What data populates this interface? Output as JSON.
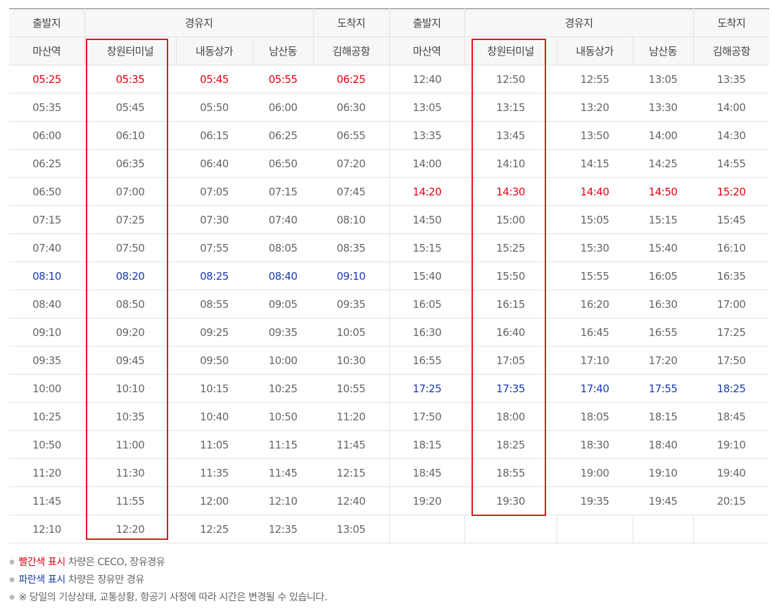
{
  "header": {
    "groups": [
      "출발지",
      "경유지",
      "도착지",
      "출발지",
      "경유지",
      "도착지"
    ],
    "stops": [
      "마산역",
      "창원터미널",
      "내동상가",
      "남산동",
      "김해공항",
      "마산역",
      "창원터미널",
      "내동상가",
      "남산동",
      "김해공항"
    ]
  },
  "left_rows": [
    {
      "t": [
        "05:25",
        "05:35",
        "05:45",
        "05:55",
        "06:25"
      ],
      "c": "red"
    },
    {
      "t": [
        "05:35",
        "05:45",
        "05:50",
        "06:00",
        "06:30"
      ],
      "c": ""
    },
    {
      "t": [
        "06:00",
        "06:10",
        "06:15",
        "06:25",
        "06:55"
      ],
      "c": ""
    },
    {
      "t": [
        "06:25",
        "06:35",
        "06:40",
        "06:50",
        "07:20"
      ],
      "c": ""
    },
    {
      "t": [
        "06:50",
        "07:00",
        "07:05",
        "07:15",
        "07:45"
      ],
      "c": ""
    },
    {
      "t": [
        "07:15",
        "07:25",
        "07:30",
        "07:40",
        "08:10"
      ],
      "c": ""
    },
    {
      "t": [
        "07:40",
        "07:50",
        "07:55",
        "08:05",
        "08:35"
      ],
      "c": ""
    },
    {
      "t": [
        "08:10",
        "08:20",
        "08:25",
        "08:40",
        "09:10"
      ],
      "c": "blue"
    },
    {
      "t": [
        "08:40",
        "08:50",
        "08:55",
        "09:05",
        "09:35"
      ],
      "c": ""
    },
    {
      "t": [
        "09:10",
        "09:20",
        "09:25",
        "09:35",
        "10:05"
      ],
      "c": ""
    },
    {
      "t": [
        "09:35",
        "09:45",
        "09:50",
        "10:00",
        "10:30"
      ],
      "c": ""
    },
    {
      "t": [
        "10:00",
        "10:10",
        "10:15",
        "10:25",
        "10:55"
      ],
      "c": ""
    },
    {
      "t": [
        "10:25",
        "10:35",
        "10:40",
        "10:50",
        "11:20"
      ],
      "c": ""
    },
    {
      "t": [
        "10:50",
        "11:00",
        "11:05",
        "11:15",
        "11:45"
      ],
      "c": ""
    },
    {
      "t": [
        "11:20",
        "11:30",
        "11:35",
        "11:45",
        "12:15"
      ],
      "c": ""
    },
    {
      "t": [
        "11:45",
        "11:55",
        "12:00",
        "12:10",
        "12:40"
      ],
      "c": ""
    },
    {
      "t": [
        "12:10",
        "12:20",
        "12:25",
        "12:35",
        "13:05"
      ],
      "c": ""
    }
  ],
  "right_rows": [
    {
      "t": [
        "12:40",
        "12:50",
        "12:55",
        "13:05",
        "13:35"
      ],
      "c": ""
    },
    {
      "t": [
        "13:05",
        "13:15",
        "13:20",
        "13:30",
        "14:00"
      ],
      "c": ""
    },
    {
      "t": [
        "13:35",
        "13:45",
        "13:50",
        "14:00",
        "14:30"
      ],
      "c": ""
    },
    {
      "t": [
        "14:00",
        "14:10",
        "14:15",
        "14:25",
        "14:55"
      ],
      "c": ""
    },
    {
      "t": [
        "14:20",
        "14:30",
        "14:40",
        "14:50",
        "15:20"
      ],
      "c": "red"
    },
    {
      "t": [
        "14:50",
        "15:00",
        "15:05",
        "15:15",
        "15:45"
      ],
      "c": ""
    },
    {
      "t": [
        "15:15",
        "15:25",
        "15:30",
        "15:40",
        "16:10"
      ],
      "c": ""
    },
    {
      "t": [
        "15:40",
        "15:50",
        "15:55",
        "16:05",
        "16:35"
      ],
      "c": ""
    },
    {
      "t": [
        "16:05",
        "16:15",
        "16:20",
        "16:30",
        "17:00"
      ],
      "c": ""
    },
    {
      "t": [
        "16:30",
        "16:40",
        "16:45",
        "16:55",
        "17:25"
      ],
      "c": ""
    },
    {
      "t": [
        "16:55",
        "17:05",
        "17:10",
        "17:20",
        "17:50"
      ],
      "c": ""
    },
    {
      "t": [
        "17:25",
        "17:35",
        "17:40",
        "17:55",
        "18:25"
      ],
      "c": "blue"
    },
    {
      "t": [
        "17:50",
        "18:00",
        "18:05",
        "18:15",
        "18:45"
      ],
      "c": ""
    },
    {
      "t": [
        "18:15",
        "18:25",
        "18:30",
        "18:40",
        "19:10"
      ],
      "c": ""
    },
    {
      "t": [
        "18:45",
        "18:55",
        "19:00",
        "19:10",
        "19:40"
      ],
      "c": ""
    },
    {
      "t": [
        "19:20",
        "19:30",
        "19:35",
        "19:45",
        "20:15"
      ],
      "c": ""
    },
    {
      "t": [
        "",
        "",
        "",
        "",
        ""
      ],
      "c": ""
    }
  ],
  "notes": {
    "red_label": "빨간색 표시",
    "red_text": " 차량은 CECO, 장유경유",
    "blue_label": "파란색 표시",
    "blue_text": " 차량은 장유만 경유",
    "notice": "※ 당일의 기상상태, 교통상황, 항공기 사정에 따라 시간은 변경될 수 있습니다."
  },
  "colors": {
    "red": "#e60012",
    "blue": "#1a3cb4",
    "highlight": "#e8141c"
  }
}
